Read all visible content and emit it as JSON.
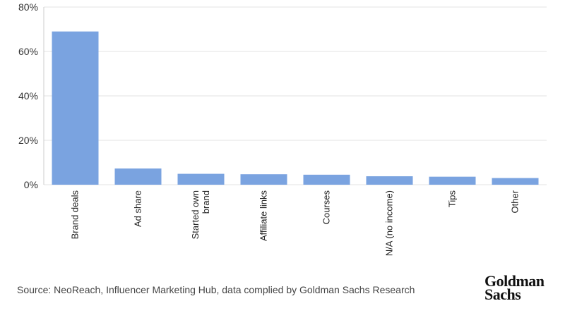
{
  "chart_data": {
    "type": "bar",
    "categories": [
      "Brand deals",
      "Ad share",
      "Started own brand",
      "Affiliate links",
      "Courses",
      "N/A (no income)",
      "Tips",
      "Other"
    ],
    "category_lines": [
      [
        "Brand deals"
      ],
      [
        "Ad share"
      ],
      [
        "Started own",
        "brand"
      ],
      [
        "Affiliate links"
      ],
      [
        "Courses"
      ],
      [
        "N/A (no income)"
      ],
      [
        "Tips"
      ],
      [
        "Other"
      ]
    ],
    "values": [
      69,
      7.3,
      4.9,
      4.7,
      4.5,
      3.8,
      3.6,
      3.0
    ],
    "ylim": [
      0,
      80
    ],
    "yticks": [
      0,
      20,
      40,
      60,
      80
    ],
    "ytick_labels": [
      "0%",
      "20%",
      "40%",
      "60%",
      "80%"
    ],
    "title": "",
    "xlabel": "",
    "ylabel": "",
    "grid": true,
    "legend": "none",
    "bar_color": "#7aa3e0"
  },
  "footer": {
    "source": "Source: NeoReach, Influencer Marketing Hub, data complied by Goldman Sachs Research",
    "logo_line1": "Goldman",
    "logo_line2": "Sachs"
  }
}
